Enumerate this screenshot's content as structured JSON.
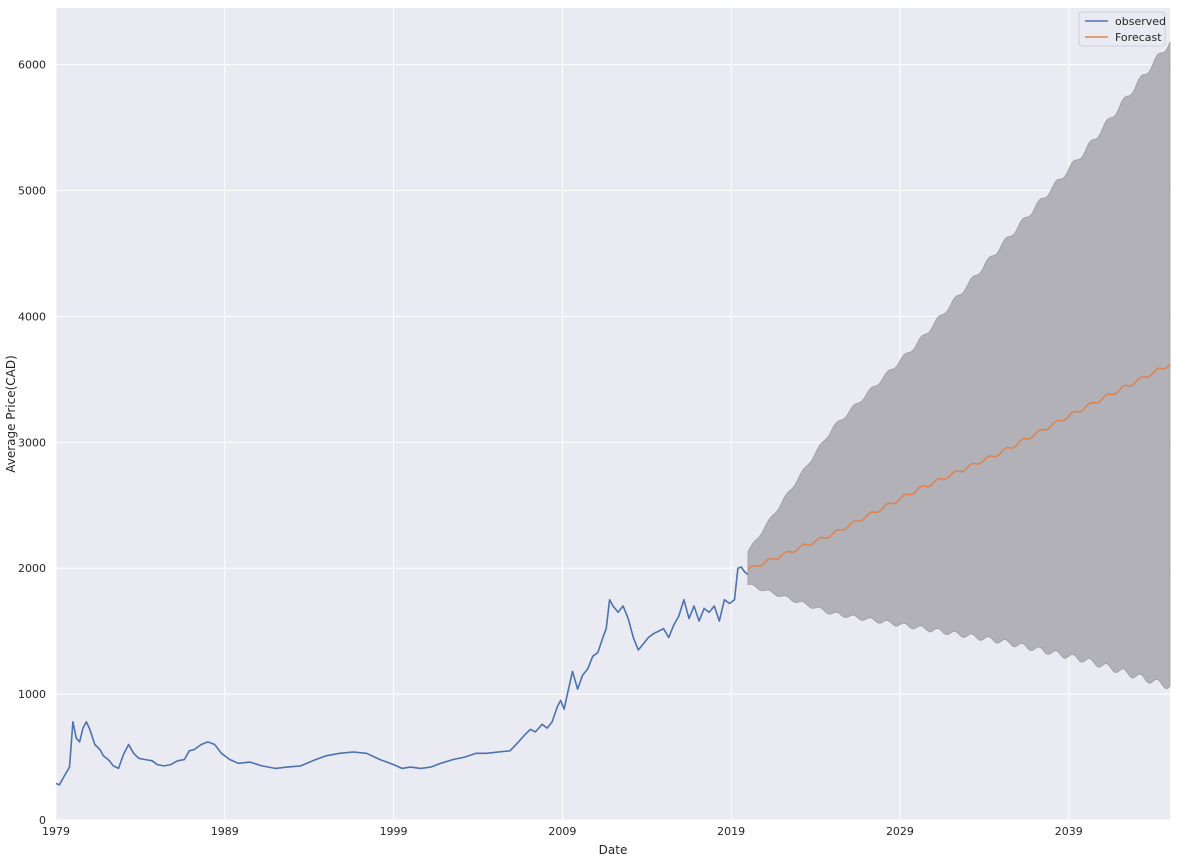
{
  "chart_data": {
    "type": "line",
    "title": "",
    "xlabel": "Date",
    "ylabel": "Average Price(CAD)",
    "xlim": [
      1979.0,
      2045.0
    ],
    "ylim": [
      0,
      6450
    ],
    "x_ticks": [
      1979,
      1989,
      1999,
      2009,
      2019,
      2029,
      2039
    ],
    "x_tick_labels": [
      "1979",
      "1989",
      "1999",
      "2009",
      "2019",
      "2029",
      "2039"
    ],
    "y_ticks": [
      0,
      1000,
      2000,
      3000,
      4000,
      5000,
      6000
    ],
    "y_tick_labels": [
      "0",
      "1000",
      "2000",
      "3000",
      "4000",
      "5000",
      "6000"
    ],
    "grid": true,
    "legend_position": "top-right",
    "colors": {
      "background": "#eaeaf2",
      "grid": "#ffffff",
      "observed": "#4c72b0",
      "forecast": "#dd8452",
      "band": "#b0aeb4",
      "band_edge": "#9a989e"
    },
    "series": [
      {
        "name": "observed",
        "x": [
          1979.0,
          1979.2,
          1979.5,
          1979.8,
          1980.0,
          1980.2,
          1980.4,
          1980.6,
          1980.8,
          1981.0,
          1981.3,
          1981.6,
          1981.8,
          1982.1,
          1982.4,
          1982.7,
          1983.0,
          1983.3,
          1983.6,
          1983.9,
          1984.3,
          1984.7,
          1985.0,
          1985.4,
          1985.8,
          1986.2,
          1986.6,
          1986.9,
          1987.2,
          1987.6,
          1988.0,
          1988.4,
          1988.8,
          1989.3,
          1989.8,
          1990.5,
          1991.2,
          1992.0,
          1992.7,
          1993.5,
          1994.2,
          1995.0,
          1995.8,
          1996.6,
          1997.4,
          1998.2,
          1999.0,
          1999.5,
          2000.0,
          2000.6,
          2001.2,
          2001.8,
          2002.5,
          2003.2,
          2003.9,
          2004.5,
          2005.2,
          2005.9,
          2006.4,
          2006.8,
          2007.1,
          2007.4,
          2007.8,
          2008.1,
          2008.4,
          2008.7,
          2008.9,
          2009.1,
          2009.3,
          2009.6,
          2009.9,
          2010.2,
          2010.5,
          2010.8,
          2011.1,
          2011.4,
          2011.6,
          2011.8,
          2012.0,
          2012.3,
          2012.6,
          2012.9,
          2013.2,
          2013.5,
          2013.8,
          2014.1,
          2014.4,
          2014.7,
          2015.0,
          2015.3,
          2015.6,
          2015.9,
          2016.2,
          2016.5,
          2016.8,
          2017.1,
          2017.4,
          2017.7,
          2018.0,
          2018.3,
          2018.6,
          2018.9,
          2019.2,
          2019.4,
          2019.6,
          2019.8,
          2020.0
        ],
        "y": [
          290,
          280,
          350,
          420,
          780,
          650,
          620,
          730,
          780,
          720,
          600,
          560,
          510,
          480,
          430,
          410,
          520,
          600,
          530,
          490,
          480,
          470,
          440,
          430,
          440,
          470,
          480,
          550,
          560,
          600,
          620,
          600,
          530,
          480,
          450,
          460,
          430,
          410,
          420,
          430,
          470,
          510,
          530,
          540,
          530,
          480,
          440,
          410,
          420,
          410,
          420,
          450,
          480,
          500,
          530,
          530,
          540,
          550,
          620,
          680,
          720,
          700,
          760,
          730,
          780,
          900,
          950,
          880,
          1000,
          1180,
          1040,
          1150,
          1200,
          1300,
          1330,
          1450,
          1520,
          1750,
          1700,
          1650,
          1700,
          1600,
          1450,
          1350,
          1400,
          1450,
          1480,
          1500,
          1520,
          1450,
          1550,
          1620,
          1750,
          1600,
          1700,
          1580,
          1680,
          1650,
          1700,
          1580,
          1750,
          1720,
          1750,
          2000,
          2010,
          1970,
          1950
        ]
      },
      {
        "name": "Forecast",
        "x": [
          2020.0,
          2025.0,
          2030.0,
          2035.0,
          2040.0,
          2045.0
        ],
        "y": [
          1990,
          2270,
          2620,
          2920,
          3280,
          3620
        ]
      }
    ],
    "confidence_band": {
      "x": [
        2020.0,
        2025.0,
        2030.0,
        2035.0,
        2040.0,
        2045.0
      ],
      "upper": [
        2130,
        3110,
        3780,
        4560,
        5320,
        6180
      ],
      "lower": [
        1870,
        1640,
        1530,
        1420,
        1270,
        1060
      ]
    }
  }
}
